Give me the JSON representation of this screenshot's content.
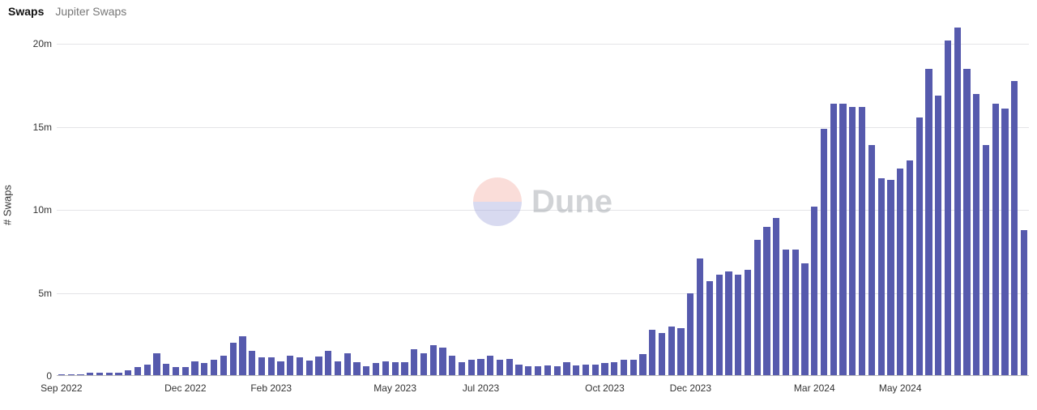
{
  "legend": {
    "active": "Swaps",
    "inactive": "Jupiter Swaps"
  },
  "ylabel": "# Swaps",
  "watermark": {
    "text": "Dune",
    "circle_top_color": "#f6b4ac",
    "circle_bottom_color": "#a9aee0",
    "text_color": "#9aa0a6"
  },
  "chart": {
    "type": "bar",
    "bar_color": "#565aad",
    "grid_color": "#e4e4e7",
    "axis_color": "#bbbbbb",
    "background_color": "#ffffff",
    "bar_width_ratio": 0.7,
    "ylim": [
      0,
      21000000
    ],
    "yticks": [
      {
        "value": 0,
        "label": "0"
      },
      {
        "value": 5000000,
        "label": "5m"
      },
      {
        "value": 10000000,
        "label": "10m"
      },
      {
        "value": 15000000,
        "label": "15m"
      },
      {
        "value": 20000000,
        "label": "20m"
      }
    ],
    "xticks": [
      {
        "index": 0,
        "label": "Sep 2022"
      },
      {
        "index": 13,
        "label": "Dec 2022"
      },
      {
        "index": 22,
        "label": "Feb 2023"
      },
      {
        "index": 35,
        "label": "May 2023"
      },
      {
        "index": 44,
        "label": "Jul 2023"
      },
      {
        "index": 57,
        "label": "Oct 2023"
      },
      {
        "index": 66,
        "label": "Dec 2023"
      },
      {
        "index": 79,
        "label": "Mar 2024"
      },
      {
        "index": 88,
        "label": "May 2024"
      }
    ],
    "values": [
      80000,
      100000,
      120000,
      200000,
      220000,
      200000,
      200000,
      350000,
      550000,
      700000,
      1350000,
      750000,
      550000,
      550000,
      900000,
      800000,
      1000000,
      1200000,
      2000000,
      2400000,
      1500000,
      1100000,
      1100000,
      900000,
      1200000,
      1100000,
      950000,
      1150000,
      1500000,
      900000,
      1350000,
      850000,
      600000,
      800000,
      900000,
      850000,
      850000,
      1600000,
      1350000,
      1850000,
      1700000,
      1200000,
      850000,
      1000000,
      1050000,
      1200000,
      1000000,
      1050000,
      700000,
      600000,
      600000,
      650000,
      600000,
      850000,
      650000,
      700000,
      700000,
      800000,
      850000,
      1000000,
      1000000,
      1300000,
      2800000,
      2600000,
      3000000,
      2900000,
      5000000,
      7100000,
      5700000,
      6100000,
      6300000,
      6100000,
      6400000,
      8200000,
      9000000,
      9500000,
      7600000,
      7600000,
      6800000,
      10200000,
      14900000,
      16400000,
      16400000,
      16200000,
      16200000,
      13900000,
      11900000,
      11800000,
      12500000,
      13000000,
      15600000,
      18500000,
      16900000,
      20200000,
      21000000,
      18500000,
      17000000,
      13900000,
      16400000,
      16100000,
      17800000,
      8800000
    ]
  }
}
